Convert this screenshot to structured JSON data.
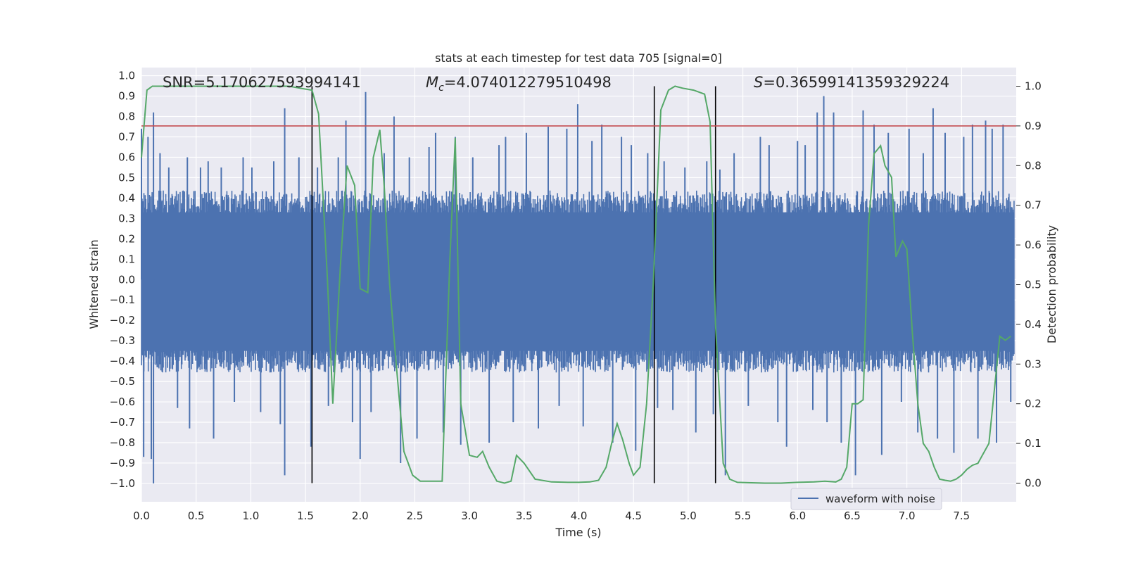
{
  "chart_data": {
    "type": "line",
    "title": "stats at each timestep for test data 705 [signal=0]",
    "xlabel": "Time (s)",
    "ylabel": "Whitened strain",
    "y2label": "Detection probability",
    "xlim": [
      0.0,
      8.0
    ],
    "ylim": [
      -1.09,
      1.04
    ],
    "y2lim": [
      -0.047,
      1.047
    ],
    "x_ticks": [
      0.0,
      0.5,
      1.0,
      1.5,
      2.0,
      2.5,
      3.0,
      3.5,
      4.0,
      4.5,
      5.0,
      5.5,
      6.0,
      6.5,
      7.0,
      7.5
    ],
    "x_tick_labels": [
      "0.0",
      "0.5",
      "1.0",
      "1.5",
      "2.0",
      "2.5",
      "3.0",
      "3.5",
      "4.0",
      "4.5",
      "5.0",
      "5.5",
      "6.0",
      "6.5",
      "7.0",
      "7.5"
    ],
    "y_ticks": [
      1.0,
      0.9,
      0.8,
      0.7,
      0.6,
      0.5,
      0.4,
      0.3,
      0.2,
      0.1,
      0.0,
      -0.1,
      -0.2,
      -0.3,
      -0.4,
      -0.5,
      -0.6,
      -0.7,
      -0.8,
      -0.9,
      -1.0
    ],
    "y_tick_labels": [
      "1.0",
      "0.9",
      "0.8",
      "0.7",
      "0.6",
      "0.5",
      "0.4",
      "0.3",
      "0.2",
      "0.1",
      "0.0",
      "−0.1",
      "−0.2",
      "−0.3",
      "−0.4",
      "−0.5",
      "−0.6",
      "−0.7",
      "−0.8",
      "−0.9",
      "−1.0"
    ],
    "y2_ticks": [
      1.0,
      0.9,
      0.8,
      0.7,
      0.6,
      0.5,
      0.4,
      0.3,
      0.2,
      0.1,
      0.0
    ],
    "y2_tick_labels": [
      "1.0",
      "0.9",
      "0.8",
      "0.7",
      "0.6",
      "0.5",
      "0.4",
      "0.3",
      "0.2",
      "0.1",
      "0.0"
    ],
    "annotations": {
      "snr": "SNR=5.170627593994141",
      "mc_symbol": "M",
      "mc_sub": "c",
      "mc_value": "=4.074012279510498",
      "s_symbol": "S",
      "s_value": "=0.36599141359329224"
    },
    "legend": {
      "label": "waveform with noise",
      "location": "lower-right"
    },
    "threshold_y2": 0.9,
    "vertical_markers_x": [
      1.56,
      4.69,
      5.25
    ],
    "waveform": {
      "name": "waveform with noise",
      "color": "#4c72b0",
      "typical_peak": 0.38,
      "spikes": [
        {
          "x": 0.0,
          "y": 0.74
        },
        {
          "x": 0.02,
          "y": -0.87
        },
        {
          "x": 0.06,
          "y": 0.7
        },
        {
          "x": 0.09,
          "y": -0.88
        },
        {
          "x": 0.11,
          "y": 0.82
        },
        {
          "x": 0.11,
          "y": -1.0
        },
        {
          "x": 0.17,
          "y": 0.62
        },
        {
          "x": 0.25,
          "y": 0.55
        },
        {
          "x": 0.33,
          "y": -0.63
        },
        {
          "x": 0.42,
          "y": 0.6
        },
        {
          "x": 0.44,
          "y": -0.73
        },
        {
          "x": 0.54,
          "y": 0.55
        },
        {
          "x": 0.61,
          "y": 0.58
        },
        {
          "x": 0.66,
          "y": -0.78
        },
        {
          "x": 0.73,
          "y": 0.55
        },
        {
          "x": 0.85,
          "y": -0.6
        },
        {
          "x": 0.93,
          "y": 0.6
        },
        {
          "x": 1.01,
          "y": 0.55
        },
        {
          "x": 1.09,
          "y": -0.65
        },
        {
          "x": 1.21,
          "y": 0.58
        },
        {
          "x": 1.27,
          "y": -0.71
        },
        {
          "x": 1.31,
          "y": 0.84
        },
        {
          "x": 1.31,
          "y": -0.96
        },
        {
          "x": 1.44,
          "y": 0.6
        },
        {
          "x": 1.55,
          "y": -0.82
        },
        {
          "x": 1.61,
          "y": 0.55
        },
        {
          "x": 1.71,
          "y": -0.62
        },
        {
          "x": 1.8,
          "y": 0.6
        },
        {
          "x": 1.87,
          "y": 0.78
        },
        {
          "x": 1.93,
          "y": -0.7
        },
        {
          "x": 2.0,
          "y": -0.88
        },
        {
          "x": 2.05,
          "y": 0.92
        },
        {
          "x": 2.1,
          "y": -0.65
        },
        {
          "x": 2.22,
          "y": 0.62
        },
        {
          "x": 2.31,
          "y": 0.8
        },
        {
          "x": 2.37,
          "y": -0.9
        },
        {
          "x": 2.45,
          "y": 0.6
        },
        {
          "x": 2.52,
          "y": -0.78
        },
        {
          "x": 2.63,
          "y": 0.65
        },
        {
          "x": 2.69,
          "y": 0.72
        },
        {
          "x": 2.76,
          "y": -0.75
        },
        {
          "x": 2.87,
          "y": 0.7
        },
        {
          "x": 2.92,
          "y": -0.81
        },
        {
          "x": 3.03,
          "y": 0.6
        },
        {
          "x": 3.18,
          "y": -0.8
        },
        {
          "x": 3.27,
          "y": 0.66
        },
        {
          "x": 3.33,
          "y": 0.7
        },
        {
          "x": 3.4,
          "y": -0.7
        },
        {
          "x": 3.52,
          "y": 0.72
        },
        {
          "x": 3.63,
          "y": -0.73
        },
        {
          "x": 3.72,
          "y": 0.75
        },
        {
          "x": 3.82,
          "y": -0.62
        },
        {
          "x": 3.89,
          "y": 0.74
        },
        {
          "x": 3.99,
          "y": 0.86
        },
        {
          "x": 4.04,
          "y": -0.72
        },
        {
          "x": 4.12,
          "y": 0.68
        },
        {
          "x": 4.21,
          "y": 0.76
        },
        {
          "x": 4.31,
          "y": -0.8
        },
        {
          "x": 4.39,
          "y": 0.7
        },
        {
          "x": 4.48,
          "y": 0.66
        },
        {
          "x": 4.52,
          "y": -0.84
        },
        {
          "x": 4.63,
          "y": 0.62
        },
        {
          "x": 4.72,
          "y": -0.63
        },
        {
          "x": 4.78,
          "y": 0.58
        },
        {
          "x": 4.86,
          "y": -0.64
        },
        {
          "x": 4.97,
          "y": 0.55
        },
        {
          "x": 5.07,
          "y": -0.75
        },
        {
          "x": 5.17,
          "y": 0.58
        },
        {
          "x": 5.23,
          "y": -0.66
        },
        {
          "x": 5.29,
          "y": 0.54
        },
        {
          "x": 5.34,
          "y": -0.96
        },
        {
          "x": 5.42,
          "y": 0.62
        },
        {
          "x": 5.55,
          "y": -0.62
        },
        {
          "x": 5.66,
          "y": 0.7
        },
        {
          "x": 5.74,
          "y": 0.66
        },
        {
          "x": 5.82,
          "y": -0.7
        },
        {
          "x": 5.9,
          "y": -0.82
        },
        {
          "x": 6.0,
          "y": 0.68
        },
        {
          "x": 6.07,
          "y": 0.66
        },
        {
          "x": 6.14,
          "y": -0.64
        },
        {
          "x": 6.18,
          "y": 0.82
        },
        {
          "x": 6.24,
          "y": 0.9
        },
        {
          "x": 6.27,
          "y": -0.7
        },
        {
          "x": 6.33,
          "y": 0.82
        },
        {
          "x": 6.4,
          "y": -0.8
        },
        {
          "x": 6.53,
          "y": -0.96
        },
        {
          "x": 6.6,
          "y": 0.83
        },
        {
          "x": 6.7,
          "y": 0.76
        },
        {
          "x": 6.77,
          "y": -0.86
        },
        {
          "x": 6.83,
          "y": 0.72
        },
        {
          "x": 6.95,
          "y": -0.6
        },
        {
          "x": 7.02,
          "y": 0.74
        },
        {
          "x": 7.1,
          "y": -0.75
        },
        {
          "x": 7.15,
          "y": 0.62
        },
        {
          "x": 7.24,
          "y": 0.84
        },
        {
          "x": 7.28,
          "y": -0.78
        },
        {
          "x": 7.35,
          "y": 0.72
        },
        {
          "x": 7.43,
          "y": -0.85
        },
        {
          "x": 7.52,
          "y": 0.7
        },
        {
          "x": 7.6,
          "y": 0.76
        },
        {
          "x": 7.65,
          "y": -0.78
        },
        {
          "x": 7.72,
          "y": 0.78
        },
        {
          "x": 7.78,
          "y": 0.74
        },
        {
          "x": 7.82,
          "y": -0.8
        },
        {
          "x": 7.88,
          "y": 0.76
        },
        {
          "x": 7.95,
          "y": -0.6
        }
      ]
    },
    "detection_probability": {
      "name": "detection probability",
      "color": "#55a868",
      "x": [
        0.0,
        0.05,
        0.1,
        0.3,
        0.5,
        0.8,
        1.0,
        1.2,
        1.35,
        1.45,
        1.56,
        1.62,
        1.7,
        1.75,
        1.82,
        1.88,
        1.95,
        2.0,
        2.07,
        2.12,
        2.18,
        2.22,
        2.27,
        2.33,
        2.4,
        2.48,
        2.55,
        2.65,
        2.75,
        2.82,
        2.87,
        2.92,
        3.0,
        3.07,
        3.12,
        3.18,
        3.25,
        3.32,
        3.38,
        3.43,
        3.5,
        3.6,
        3.75,
        3.9,
        4.0,
        4.1,
        4.18,
        4.25,
        4.3,
        4.35,
        4.4,
        4.46,
        4.5,
        4.56,
        4.62,
        4.68,
        4.75,
        4.82,
        4.88,
        4.95,
        5.05,
        5.15,
        5.2,
        5.25,
        5.32,
        5.38,
        5.45,
        5.55,
        5.7,
        5.85,
        6.0,
        6.15,
        6.25,
        6.35,
        6.4,
        6.45,
        6.5,
        6.55,
        6.6,
        6.65,
        6.7,
        6.76,
        6.8,
        6.86,
        6.9,
        6.96,
        7.0,
        7.05,
        7.1,
        7.15,
        7.2,
        7.25,
        7.3,
        7.35,
        7.4,
        7.45,
        7.5,
        7.55,
        7.6,
        7.65,
        7.75,
        7.85,
        7.9,
        7.95
      ],
      "y": [
        0.82,
        0.99,
        1.0,
        1.0,
        1.0,
        1.0,
        1.0,
        1.0,
        1.0,
        0.995,
        0.99,
        0.93,
        0.52,
        0.2,
        0.55,
        0.8,
        0.75,
        0.49,
        0.48,
        0.82,
        0.89,
        0.75,
        0.5,
        0.3,
        0.08,
        0.02,
        0.005,
        0.005,
        0.005,
        0.56,
        0.87,
        0.2,
        0.07,
        0.065,
        0.08,
        0.04,
        0.005,
        0.0,
        0.005,
        0.07,
        0.05,
        0.01,
        0.003,
        0.002,
        0.002,
        0.003,
        0.007,
        0.04,
        0.1,
        0.15,
        0.11,
        0.05,
        0.02,
        0.04,
        0.2,
        0.5,
        0.94,
        0.99,
        1.0,
        0.995,
        0.99,
        0.98,
        0.91,
        0.4,
        0.05,
        0.01,
        0.002,
        0.001,
        0.0,
        0.0,
        0.002,
        0.003,
        0.005,
        0.003,
        0.01,
        0.04,
        0.2,
        0.2,
        0.21,
        0.65,
        0.83,
        0.85,
        0.8,
        0.77,
        0.57,
        0.61,
        0.59,
        0.38,
        0.2,
        0.1,
        0.08,
        0.04,
        0.01,
        0.007,
        0.005,
        0.01,
        0.02,
        0.035,
        0.045,
        0.05,
        0.1,
        0.37,
        0.36,
        0.37
      ]
    },
    "ylabel_color": "#262626"
  }
}
